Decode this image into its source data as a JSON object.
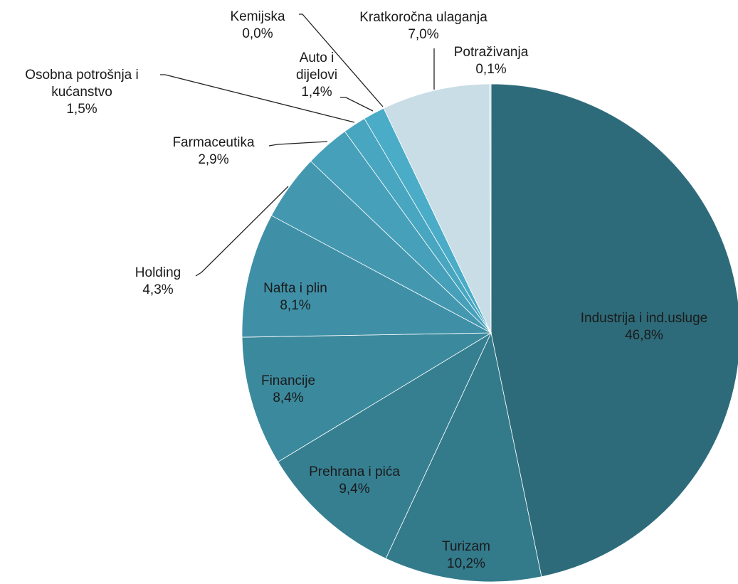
{
  "chart_data": {
    "type": "pie",
    "categories": [
      "Industrija i ind.usluge",
      "Turizam",
      "Prehrana i pića",
      "Financije",
      "Nafta i plin",
      "Holding",
      "Farmaceutika",
      "Osobna potrošnja i kućanstvo",
      "Auto i dijelovi",
      "Kemijska",
      "Kratkoročna ulaganja",
      "Potraživanja"
    ],
    "values": [
      46.8,
      10.2,
      9.4,
      8.4,
      8.1,
      4.3,
      2.9,
      1.5,
      1.4,
      0.0,
      7.0,
      0.1
    ],
    "value_labels": [
      "46,8%",
      "10,2%",
      "9,4%",
      "8,4%",
      "8,1%",
      "4,3%",
      "2,9%",
      "1,5%",
      "1,4%",
      "0,0%",
      "7,0%",
      "0,1%"
    ],
    "colors": [
      "#2e6b7a",
      "#337a8b",
      "#367f91",
      "#3b899d",
      "#3f90a7",
      "#4398b0",
      "#46a0b9",
      "#48a6c0",
      "#4aacc7",
      "#4aacc7",
      "#c8dde6",
      "#c8dde6"
    ]
  }
}
